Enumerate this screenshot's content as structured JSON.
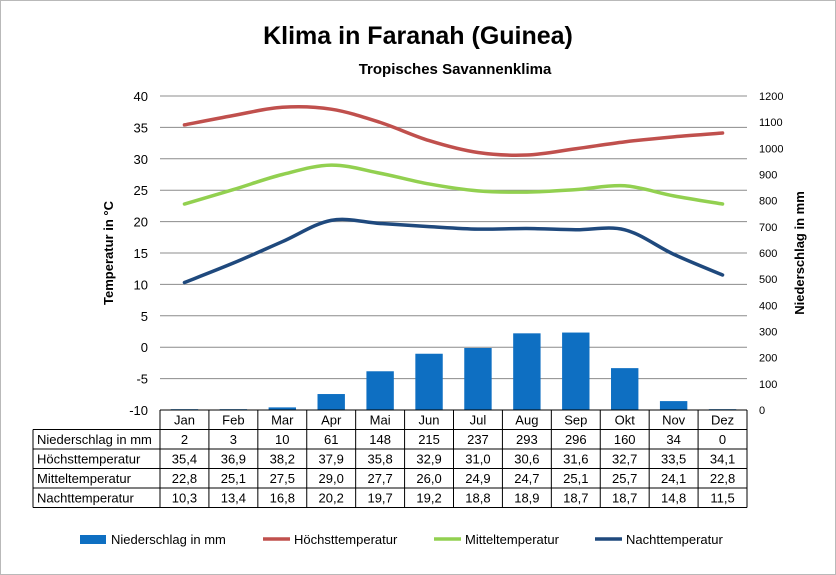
{
  "chart_data": {
    "type": "bar+line",
    "title": "Klima in Faranah (Guinea)",
    "subtitle": "Tropisches Savannenklima",
    "categories": [
      "Jan",
      "Feb",
      "Mar",
      "Apr",
      "Mai",
      "Jun",
      "Jul",
      "Aug",
      "Sep",
      "Okt",
      "Nov",
      "Dez"
    ],
    "ylabel_left": "Temperatur in °C",
    "ylabel_right": "Niederschlag in mm",
    "ylim_left": [
      -10,
      40
    ],
    "yticks_left": [
      40,
      35,
      30,
      25,
      20,
      15,
      10,
      5,
      0,
      -5,
      -10
    ],
    "ylim_right": [
      0,
      1200
    ],
    "yticks_right": [
      1200,
      1100,
      1000,
      900,
      800,
      700,
      600,
      500,
      400,
      300,
      200,
      100,
      0
    ],
    "grid": true,
    "legend_position": "bottom",
    "series": [
      {
        "name": "Niederschlag in mm",
        "kind": "bar",
        "axis": "right",
        "color": "#0e6fc2",
        "values": [
          2,
          3,
          10,
          61,
          148,
          215,
          237,
          293,
          296,
          160,
          34,
          0
        ],
        "labels": [
          "2",
          "3",
          "10",
          "61",
          "148",
          "215",
          "237",
          "293",
          "296",
          "160",
          "34",
          "0"
        ]
      },
      {
        "name": "Höchsttemperatur",
        "kind": "line",
        "axis": "left",
        "color": "#c0504d",
        "values": [
          35.4,
          36.9,
          38.2,
          37.9,
          35.8,
          32.9,
          31.0,
          30.6,
          31.6,
          32.7,
          33.5,
          34.1
        ],
        "labels": [
          "35,4",
          "36,9",
          "38,2",
          "37,9",
          "35,8",
          "32,9",
          "31,0",
          "30,6",
          "31,6",
          "32,7",
          "33,5",
          "34,1"
        ]
      },
      {
        "name": "Mitteltemperatur",
        "kind": "line",
        "axis": "left",
        "color": "#92d050",
        "values": [
          22.8,
          25.1,
          27.5,
          29.0,
          27.7,
          26.0,
          24.9,
          24.7,
          25.1,
          25.7,
          24.1,
          22.8
        ],
        "labels": [
          "22,8",
          "25,1",
          "27,5",
          "29,0",
          "27,7",
          "26,0",
          "24,9",
          "24,7",
          "25,1",
          "25,7",
          "24,1",
          "22,8"
        ]
      },
      {
        "name": "Nachttemperatur",
        "kind": "line",
        "axis": "left",
        "color": "#1f497d",
        "values": [
          10.3,
          13.4,
          16.8,
          20.2,
          19.7,
          19.2,
          18.8,
          18.9,
          18.7,
          18.7,
          14.8,
          11.5
        ],
        "labels": [
          "10,3",
          "13,4",
          "16,8",
          "20,2",
          "19,7",
          "19,2",
          "18,8",
          "18,9",
          "18,7",
          "18,7",
          "14,8",
          "11,5"
        ]
      }
    ]
  }
}
